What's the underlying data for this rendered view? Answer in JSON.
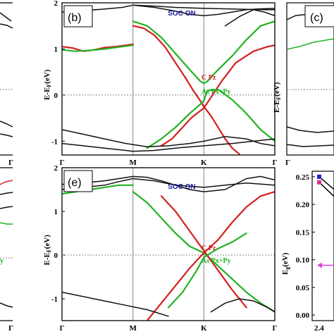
{
  "figure": {
    "panels": [
      {
        "id": "b",
        "label": "(b)",
        "soc_text": "SOC ON",
        "legend": [
          "C Pz",
          "As Px+Py"
        ],
        "ylabel": "E-E_F(eV)",
        "yticks": [
          "2",
          "1",
          "0",
          "-1"
        ],
        "xticks": [
          "Γ",
          "M",
          "K",
          "Γ"
        ]
      },
      {
        "id": "e",
        "label": "(e)",
        "soc_text": "SOC ON",
        "legend": [
          "C Pz",
          "As Px+Py"
        ],
        "ylabel": "E-E_F(eV)",
        "yticks": [
          "2",
          "1",
          "0",
          "-1"
        ],
        "xticks": [
          "Γ",
          "M",
          "K",
          "Γ"
        ]
      }
    ],
    "left_partial_xticks": [
      "Γ",
      "Γ"
    ],
    "right_partial_top": {
      "label": "(c)",
      "ylabel": "E-E_F(eV)"
    },
    "right_partial_bottom": {
      "ylabel": "E_g(eV)",
      "yticks": [
        "0.25",
        "0.20",
        "0.15",
        "0.10",
        "0.05",
        "0.00"
      ],
      "xtick": "2.4"
    },
    "left_partial_bottom_text": "y"
  },
  "colors": {
    "c_pz": "#d42020",
    "as_pxpy": "#22b322",
    "band": "#111111",
    "soc": "#1a1aa0",
    "vline": "#9a9a9a",
    "fermi": "#888888",
    "arrow": "#e040e0",
    "marker_blue": "#2222cc",
    "marker_pink": "#e03090"
  },
  "chart_data": [
    {
      "type": "line",
      "panel": "b",
      "ylabel": "E-E_F(eV)",
      "ylim": [
        -1.3,
        2.0
      ],
      "xlim": [
        0,
        3
      ],
      "xticks": [
        "Γ",
        "M",
        "K",
        "Γ"
      ],
      "legend": [
        "C Pz",
        "As Px+Py"
      ],
      "annotation": "SOC ON",
      "series": [
        {
          "style": "band",
          "x": [
            0,
            0.15,
            0.35,
            0.55,
            0.7,
            0.85,
            1.0,
            1.3,
            1.6,
            2.0,
            2.3,
            2.6,
            2.85,
            3.0
          ],
          "y": [
            1.8,
            1.82,
            1.84,
            1.86,
            1.88,
            1.9,
            1.95,
            1.93,
            1.9,
            1.88,
            1.87,
            1.86,
            1.85,
            1.85
          ]
        },
        {
          "style": "band",
          "x": [
            1.0,
            1.3,
            1.6,
            1.8,
            2.0,
            2.2,
            2.4,
            2.6,
            2.8,
            3.0
          ],
          "y": [
            1.95,
            1.9,
            1.82,
            1.75,
            1.72,
            1.75,
            1.8,
            1.85,
            1.87,
            1.88
          ]
        },
        {
          "style": "band",
          "x": [
            2.3,
            2.5,
            2.7,
            2.85,
            3.0
          ],
          "y": [
            1.5,
            1.7,
            1.85,
            1.8,
            1.72
          ]
        },
        {
          "style": "c_pz",
          "x": [
            0,
            0.15,
            0.3,
            0.45,
            0.6,
            0.75,
            0.9,
            1.0
          ],
          "y": [
            1.05,
            1.02,
            0.95,
            0.98,
            1.03,
            1.05,
            1.08,
            1.1
          ]
        },
        {
          "style": "c_pz",
          "x": [
            1.0,
            1.15,
            1.3,
            1.45,
            1.6,
            1.75,
            1.85,
            1.93,
            2.0
          ],
          "y": [
            1.5,
            1.45,
            1.3,
            1.05,
            0.7,
            0.35,
            0.1,
            -0.08,
            -0.25
          ]
        },
        {
          "style": "c_pz",
          "x": [
            2.0,
            2.1,
            2.2,
            2.3,
            2.4,
            2.5
          ],
          "y": [
            -0.25,
            -0.45,
            -0.7,
            -0.95,
            -1.15,
            -1.28
          ]
        },
        {
          "style": "c_pz",
          "x": [
            1.4,
            1.55,
            1.7,
            1.82,
            1.9,
            2.0
          ],
          "y": [
            -1.1,
            -0.95,
            -0.7,
            -0.5,
            -0.4,
            -0.28
          ]
        },
        {
          "style": "c_pz",
          "x": [
            2.0,
            2.1,
            2.25,
            2.45,
            2.7,
            2.9,
            3.0
          ],
          "y": [
            -0.28,
            -0.05,
            0.3,
            0.7,
            0.95,
            1.05,
            1.08
          ]
        },
        {
          "style": "as_pxpy",
          "x": [
            0,
            0.2,
            0.4,
            0.6,
            0.8,
            1.0
          ],
          "y": [
            0.98,
            0.95,
            0.97,
            1.0,
            1.04,
            1.08
          ]
        },
        {
          "style": "as_pxpy",
          "x": [
            1.0,
            1.2,
            1.4,
            1.6,
            1.8,
            1.95,
            2.0
          ],
          "y": [
            1.6,
            1.5,
            1.25,
            0.9,
            0.55,
            0.3,
            0.25
          ]
        },
        {
          "style": "as_pxpy",
          "x": [
            2.0,
            2.05,
            2.2,
            2.4,
            2.6,
            2.8,
            3.0
          ],
          "y": [
            0.25,
            0.3,
            0.55,
            0.85,
            1.2,
            1.5,
            1.6
          ]
        },
        {
          "style": "as_pxpy",
          "x": [
            1.2,
            1.4,
            1.6,
            1.8,
            1.95,
            2.0
          ],
          "y": [
            -1.15,
            -0.95,
            -0.7,
            -0.4,
            -0.2,
            -0.12
          ]
        },
        {
          "style": "as_pxpy",
          "x": [
            2.0,
            2.05,
            2.2,
            2.4,
            2.6,
            2.8,
            3.0
          ],
          "y": [
            -0.12,
            0.1,
            0.12,
            -0.1,
            -0.4,
            -0.75,
            -1.0
          ]
        },
        {
          "style": "band",
          "x": [
            0,
            0.3,
            0.6,
            0.9,
            1.2,
            1.5,
            1.8,
            2.0,
            2.3,
            2.6,
            2.8,
            3.0
          ],
          "y": [
            -0.75,
            -0.85,
            -0.95,
            -1.05,
            -1.12,
            -1.1,
            -1.05,
            -1.0,
            -0.9,
            -0.95,
            -1.05,
            -1.1
          ]
        },
        {
          "style": "band",
          "x": [
            0,
            0.3,
            0.6,
            0.9,
            1.0,
            1.3,
            1.6,
            2.0,
            2.4,
            2.7,
            3.0
          ],
          "y": [
            -1.05,
            -1.1,
            -1.15,
            -1.2,
            -1.22,
            -1.2,
            -1.15,
            -1.1,
            -1.05,
            -1.0,
            -0.95
          ]
        }
      ]
    },
    {
      "type": "line",
      "panel": "e",
      "ylabel": "E-E_F(eV)",
      "ylim": [
        -1.5,
        2.0
      ],
      "xlim": [
        0,
        3
      ],
      "xticks": [
        "Γ",
        "M",
        "K",
        "Γ"
      ],
      "legend": [
        "C Pz",
        "As Px+Py"
      ],
      "annotation": "SOC ON",
      "series": [
        {
          "style": "band",
          "x": [
            0,
            0.3,
            0.6,
            0.8,
            1.0,
            1.3,
            1.6,
            2.0,
            2.3,
            2.6,
            3.0
          ],
          "y": [
            1.5,
            1.55,
            1.6,
            1.68,
            1.75,
            1.7,
            1.6,
            1.55,
            1.6,
            1.65,
            1.6
          ]
        },
        {
          "style": "band",
          "x": [
            0,
            0.3,
            0.6,
            0.8,
            1.0,
            1.2,
            1.4,
            1.6,
            1.8,
            2.0
          ],
          "y": [
            1.62,
            1.65,
            1.7,
            1.75,
            1.8,
            1.78,
            1.7,
            1.6,
            1.5,
            1.45
          ]
        },
        {
          "style": "band",
          "x": [
            2.0,
            2.3,
            2.6,
            2.8,
            3.0
          ],
          "y": [
            1.45,
            1.5,
            1.75,
            1.8,
            1.72
          ]
        },
        {
          "style": "as_pxpy",
          "x": [
            0,
            0.2,
            0.4,
            0.6,
            0.8,
            1.0
          ],
          "y": [
            1.4,
            1.45,
            1.5,
            1.55,
            1.6,
            1.6
          ]
        },
        {
          "style": "as_pxpy",
          "x": [
            1.0,
            1.2,
            1.4,
            1.6,
            1.8,
            2.0
          ],
          "y": [
            1.45,
            1.2,
            0.85,
            0.5,
            0.2,
            0.05
          ]
        },
        {
          "style": "as_pxpy",
          "x": [
            2.0,
            2.2,
            2.4,
            2.6,
            2.8,
            3.0
          ],
          "y": [
            0.05,
            -0.25,
            -0.55,
            -0.85,
            -1.1,
            -1.3
          ]
        },
        {
          "style": "c_pz",
          "x": [
            1.2,
            1.4,
            1.6,
            1.8,
            2.0
          ],
          "y": [
            -1.5,
            -1.1,
            -0.7,
            -0.3,
            0.05
          ]
        },
        {
          "style": "c_pz",
          "x": [
            2.0,
            2.2,
            2.4,
            2.6,
            2.8,
            3.0
          ],
          "y": [
            0.05,
            0.35,
            0.75,
            1.1,
            1.35,
            1.45
          ]
        },
        {
          "style": "c_pz",
          "x": [
            1.4,
            1.6,
            1.8,
            2.0,
            2.2,
            2.4,
            2.6
          ],
          "y": [
            1.35,
            1.0,
            0.55,
            0.1,
            -0.35,
            -0.8,
            -1.2
          ]
        },
        {
          "style": "as_pxpy",
          "x": [
            1.5,
            1.7,
            1.9,
            2.0,
            2.2,
            2.4,
            2.6
          ],
          "y": [
            -1.2,
            -0.85,
            -0.35,
            -0.05,
            0.15,
            0.3,
            0.5
          ]
        },
        {
          "style": "band",
          "x": [
            0,
            0.3,
            0.6,
            0.9,
            1.2,
            1.5
          ],
          "y": [
            -0.85,
            -0.95,
            -1.05,
            -1.15,
            -1.25,
            -1.4
          ]
        },
        {
          "style": "band",
          "x": [
            2.1,
            2.3,
            2.5,
            2.7,
            2.9,
            3.0
          ],
          "y": [
            -1.3,
            -1.1,
            -1.0,
            -1.05,
            -1.2,
            -1.3
          ]
        }
      ]
    },
    {
      "type": "scatter",
      "panel": "right-bottom",
      "ylabel": "E_g(eV)",
      "ylim": [
        -0.01,
        0.26
      ],
      "xticks": [
        "2.4"
      ],
      "series": [
        {
          "style": "marker_blue",
          "x": [
            2.4
          ],
          "y": [
            0.25
          ]
        },
        {
          "style": "marker_pink",
          "x": [
            2.4
          ],
          "y": [
            0.24
          ]
        }
      ],
      "annotation_arrow_y": 0.09
    }
  ]
}
